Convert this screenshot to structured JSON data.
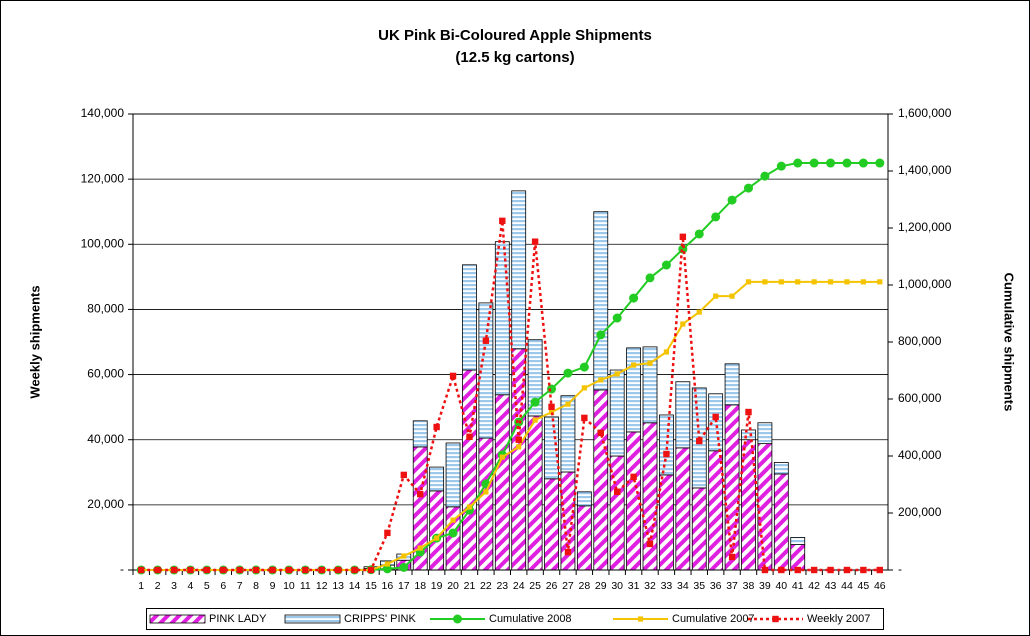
{
  "chart_data": {
    "type": "bar",
    "title": "UK Pink Bi-Coloured Apple Shipments",
    "subtitle": "(12.5 kg cartons)",
    "y_label": "Weekly shipments",
    "y2_label": "Cumulative shipments",
    "categories": [
      "1",
      "2",
      "3",
      "4",
      "5",
      "6",
      "7",
      "8",
      "9",
      "10",
      "11",
      "12",
      "13",
      "14",
      "15",
      "16",
      "17",
      "18",
      "19",
      "20",
      "21",
      "22",
      "23",
      "24",
      "25",
      "26",
      "27",
      "28",
      "29",
      "30",
      "31",
      "32",
      "33",
      "34",
      "35",
      "36",
      "37",
      "38",
      "39",
      "40",
      "41",
      "42",
      "43",
      "44",
      "45",
      "46"
    ],
    "series": [
      {
        "name": "PINK LADY",
        "type": "bar",
        "color": "#e020e0",
        "pattern": "diagonal",
        "values": [
          0,
          0,
          0,
          0,
          0,
          0,
          0,
          0,
          0,
          0,
          0,
          0,
          0,
          0,
          500,
          1500,
          3000,
          37800,
          24300,
          19400,
          61400,
          40500,
          53800,
          67900,
          47300,
          28000,
          30100,
          19700,
          55300,
          35000,
          42400,
          45200,
          29200,
          37500,
          25200,
          36600,
          50700,
          40000,
          38800,
          29500,
          7800,
          0,
          0,
          0,
          0,
          0
        ]
      },
      {
        "name": "CRIPPS' PINK",
        "type": "bar",
        "color": "#9cc8ec",
        "pattern": "horizontal",
        "values": [
          0,
          0,
          0,
          0,
          0,
          0,
          0,
          0,
          0,
          0,
          0,
          0,
          0,
          0,
          500,
          1300,
          1900,
          8000,
          7300,
          19600,
          32300,
          41500,
          47000,
          48500,
          23400,
          19000,
          23400,
          4300,
          54700,
          26400,
          25800,
          23300,
          18400,
          20300,
          30700,
          17500,
          12600,
          3000,
          6400,
          3500,
          2200,
          0,
          0,
          0,
          0,
          0
        ]
      },
      {
        "name": "Cumulative 2008",
        "type": "line",
        "axis": "y2",
        "color": "#22cc22",
        "marker": "circle",
        "values": [
          0,
          0,
          0,
          0,
          0,
          0,
          0,
          0,
          0,
          0,
          0,
          0,
          0,
          0,
          1000,
          4000,
          9000,
          63000,
          112000,
          130000,
          210000,
          302000,
          404000,
          519000,
          589000,
          635000,
          691000,
          712000,
          825000,
          884000,
          954000,
          1025000,
          1070000,
          1126000,
          1179000,
          1239000,
          1298000,
          1340000,
          1382000,
          1417000,
          1428000,
          1428000,
          1428000,
          1428000,
          1428000,
          1428000
        ]
      },
      {
        "name": "Cumulative 2007",
        "type": "line",
        "axis": "y2",
        "color": "#f5c400",
        "marker": "square",
        "values": [
          0,
          0,
          0,
          0,
          0,
          0,
          0,
          0,
          0,
          0,
          0,
          0,
          0,
          0,
          0,
          21000,
          49000,
          77000,
          112000,
          175000,
          221000,
          274000,
          396000,
          432000,
          526000,
          554000,
          582000,
          639000,
          667000,
          688000,
          719000,
          726000,
          765000,
          863000,
          905000,
          961000,
          961000,
          1011000,
          1011000,
          1011000,
          1011000,
          1011000,
          1011000,
          1011000,
          1011000,
          1011000
        ]
      },
      {
        "name": "Weekly 2007",
        "type": "line",
        "color": "#ee1111",
        "marker": "square",
        "dotted": true,
        "values": [
          0,
          0,
          0,
          0,
          0,
          0,
          0,
          0,
          0,
          0,
          0,
          0,
          0,
          0,
          0,
          11400,
          29200,
          23300,
          43900,
          59600,
          40900,
          70400,
          107200,
          40000,
          100800,
          50100,
          5500,
          46700,
          42100,
          24000,
          28600,
          8000,
          35600,
          102300,
          39600,
          47000,
          4000,
          48500,
          0,
          0,
          0,
          0,
          0,
          0,
          0,
          0
        ]
      }
    ],
    "ylim": [
      0,
      140000
    ],
    "yticks": [
      {
        "value": 0,
        "label": "-"
      },
      {
        "value": 20000,
        "label": "20,000"
      },
      {
        "value": 40000,
        "label": "40,000"
      },
      {
        "value": 60000,
        "label": "60,000"
      },
      {
        "value": 80000,
        "label": "80,000"
      },
      {
        "value": 100000,
        "label": "100,000"
      },
      {
        "value": 120000,
        "label": "120,000"
      },
      {
        "value": 140000,
        "label": "140,000"
      }
    ],
    "y2lim": [
      0,
      1600000
    ],
    "y2ticks": [
      {
        "value": 0,
        "label": "-"
      },
      {
        "value": 200000,
        "label": "200,000"
      },
      {
        "value": 400000,
        "label": "400,000"
      },
      {
        "value": 600000,
        "label": "600,000"
      },
      {
        "value": 800000,
        "label": "800,000"
      },
      {
        "value": 1000000,
        "label": "1,000,000"
      },
      {
        "value": 1200000,
        "label": "1,200,000"
      },
      {
        "value": 1400000,
        "label": "1,400,000"
      },
      {
        "value": 1600000,
        "label": "1,600,000"
      }
    ],
    "grid": true,
    "legend": "bottom"
  }
}
